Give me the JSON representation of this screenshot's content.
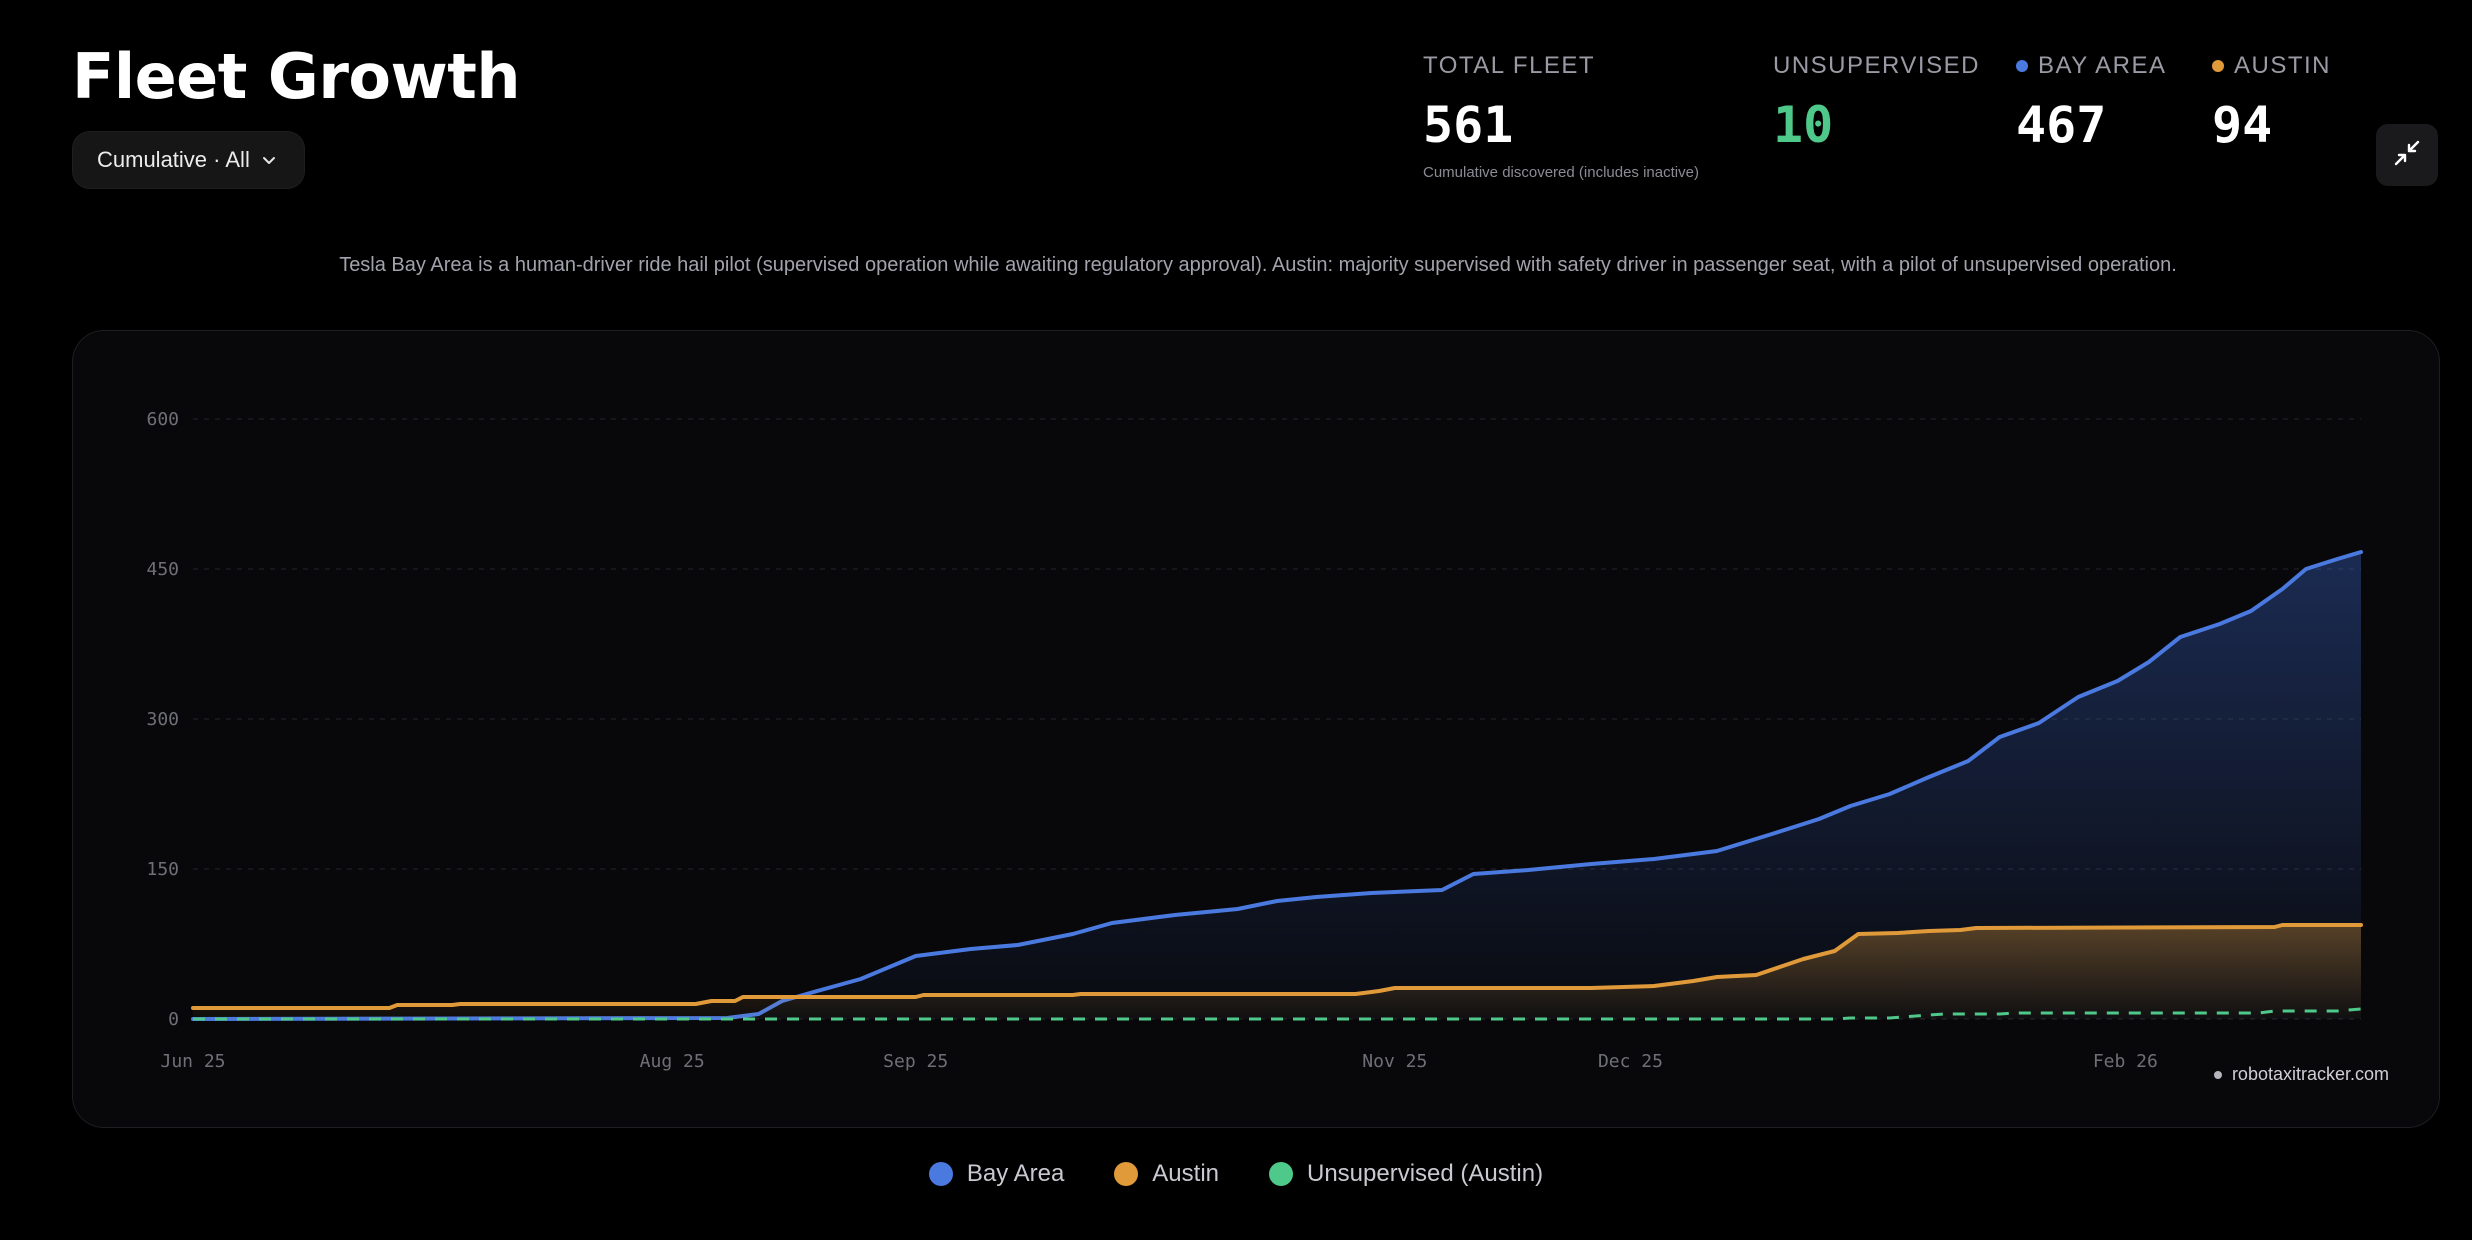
{
  "header": {
    "title": "Fleet Growth",
    "view_select": "Cumulative · All"
  },
  "stats": [
    {
      "key": "total",
      "label": "TOTAL FLEET",
      "value": "561",
      "sub": "Cumulative discovered (includes inactive)",
      "color": "#ffffff"
    },
    {
      "key": "unsupervised",
      "label": "UNSUPERVISED",
      "value": "10",
      "color": "#4ec98a"
    },
    {
      "key": "bay",
      "label": "BAY AREA",
      "value": "467",
      "color": "#ffffff",
      "dot": "#4a7ae0"
    },
    {
      "key": "austin",
      "label": "AUSTIN",
      "value": "94",
      "color": "#ffffff",
      "dot": "#e09a3a"
    }
  ],
  "icons": {
    "view_select": "chevron-down-icon",
    "collapse": "collapse-icon"
  },
  "note": "Tesla Bay Area is a human-driver ride hail pilot (supervised operation while awaiting regulatory approval). Austin: majority supervised with safety driver in passenger seat, with a pilot of unsupervised operation.",
  "watermark": "robotaxitracker.com",
  "colors": {
    "bay": "#4a7ae0",
    "austin": "#e09a3a",
    "unsupervised": "#4ec98a"
  },
  "chart_data": {
    "type": "area",
    "x_range": [
      "2025-06-25",
      "2026-03-28"
    ],
    "xticks": [
      {
        "label": "Jun 25",
        "date": "2025-06-25"
      },
      {
        "label": "Aug 25",
        "date": "2025-08-25"
      },
      {
        "label": "Sep 25",
        "date": "2025-09-25"
      },
      {
        "label": "Nov 25",
        "date": "2025-11-25"
      },
      {
        "label": "Dec 25",
        "date": "2025-12-25"
      },
      {
        "label": "Feb 26",
        "date": "2026-02-26"
      }
    ],
    "ylim": [
      0,
      600
    ],
    "yticks": [
      0,
      150,
      300,
      450,
      600
    ],
    "grid": true,
    "legend_position": "bottom",
    "series": [
      {
        "name": "Bay Area",
        "key": "bay",
        "style": "area",
        "points": [
          [
            "2025-06-25",
            0
          ],
          [
            "2025-09-01",
            1
          ],
          [
            "2025-09-05",
            5
          ],
          [
            "2025-09-08",
            18
          ],
          [
            "2025-09-12",
            27
          ],
          [
            "2025-09-18",
            40
          ],
          [
            "2025-09-25",
            63
          ],
          [
            "2025-10-02",
            70
          ],
          [
            "2025-10-08",
            74
          ],
          [
            "2025-10-15",
            85
          ],
          [
            "2025-10-20",
            96
          ],
          [
            "2025-10-28",
            104
          ],
          [
            "2025-11-05",
            110
          ],
          [
            "2025-11-10",
            118
          ],
          [
            "2025-11-15",
            122
          ],
          [
            "2025-11-22",
            126
          ],
          [
            "2025-12-01",
            129
          ],
          [
            "2025-12-05",
            145
          ],
          [
            "2025-12-12",
            149
          ],
          [
            "2025-12-20",
            155
          ],
          [
            "2025-12-28",
            160
          ],
          [
            "2026-01-05",
            168
          ],
          [
            "2026-01-12",
            185
          ],
          [
            "2026-01-18",
            200
          ],
          [
            "2026-01-22",
            213
          ],
          [
            "2026-01-27",
            225
          ],
          [
            "2026-02-01",
            242
          ],
          [
            "2026-02-06",
            258
          ],
          [
            "2026-02-10",
            282
          ],
          [
            "2026-02-15",
            296
          ],
          [
            "2026-02-20",
            322
          ],
          [
            "2026-02-25",
            338
          ],
          [
            "2026-03-01",
            357
          ],
          [
            "2026-03-05",
            382
          ],
          [
            "2026-03-10",
            395
          ],
          [
            "2026-03-14",
            408
          ],
          [
            "2026-03-18",
            430
          ],
          [
            "2026-03-21",
            450
          ],
          [
            "2026-03-25",
            460
          ],
          [
            "2026-03-28",
            467
          ]
        ]
      },
      {
        "name": "Austin",
        "key": "austin",
        "style": "area",
        "points": [
          [
            "2025-06-25",
            11
          ],
          [
            "2025-07-20",
            11
          ],
          [
            "2025-07-21",
            14
          ],
          [
            "2025-07-28",
            14
          ],
          [
            "2025-07-29",
            15
          ],
          [
            "2025-08-28",
            15
          ],
          [
            "2025-08-30",
            18
          ],
          [
            "2025-09-02",
            18
          ],
          [
            "2025-09-03",
            22
          ],
          [
            "2025-09-25",
            22
          ],
          [
            "2025-09-26",
            24
          ],
          [
            "2025-10-15",
            24
          ],
          [
            "2025-10-16",
            25
          ],
          [
            "2025-11-20",
            25
          ],
          [
            "2025-11-23",
            28
          ],
          [
            "2025-11-25",
            31
          ],
          [
            "2025-12-20",
            31
          ],
          [
            "2025-12-28",
            33
          ],
          [
            "2026-01-02",
            38
          ],
          [
            "2026-01-05",
            42
          ],
          [
            "2026-01-10",
            44
          ],
          [
            "2026-01-13",
            52
          ],
          [
            "2026-01-16",
            60
          ],
          [
            "2026-01-20",
            68
          ],
          [
            "2026-01-23",
            85
          ],
          [
            "2026-01-28",
            86
          ],
          [
            "2026-02-01",
            88
          ],
          [
            "2026-02-05",
            89
          ],
          [
            "2026-02-07",
            91
          ],
          [
            "2026-03-17",
            92
          ],
          [
            "2026-03-18",
            94
          ],
          [
            "2026-03-28",
            94
          ]
        ]
      },
      {
        "name": "Unsupervised (Austin)",
        "key": "unsupervised",
        "style": "dashed",
        "points": [
          [
            "2025-06-25",
            0
          ],
          [
            "2026-01-20",
            0
          ],
          [
            "2026-01-22",
            1
          ],
          [
            "2026-01-27",
            1
          ],
          [
            "2026-02-01",
            4
          ],
          [
            "2026-02-03",
            5
          ],
          [
            "2026-02-10",
            5
          ],
          [
            "2026-02-12",
            6
          ],
          [
            "2026-03-15",
            6
          ],
          [
            "2026-03-17",
            8
          ],
          [
            "2026-03-25",
            8
          ],
          [
            "2026-03-28",
            10
          ]
        ]
      }
    ]
  }
}
